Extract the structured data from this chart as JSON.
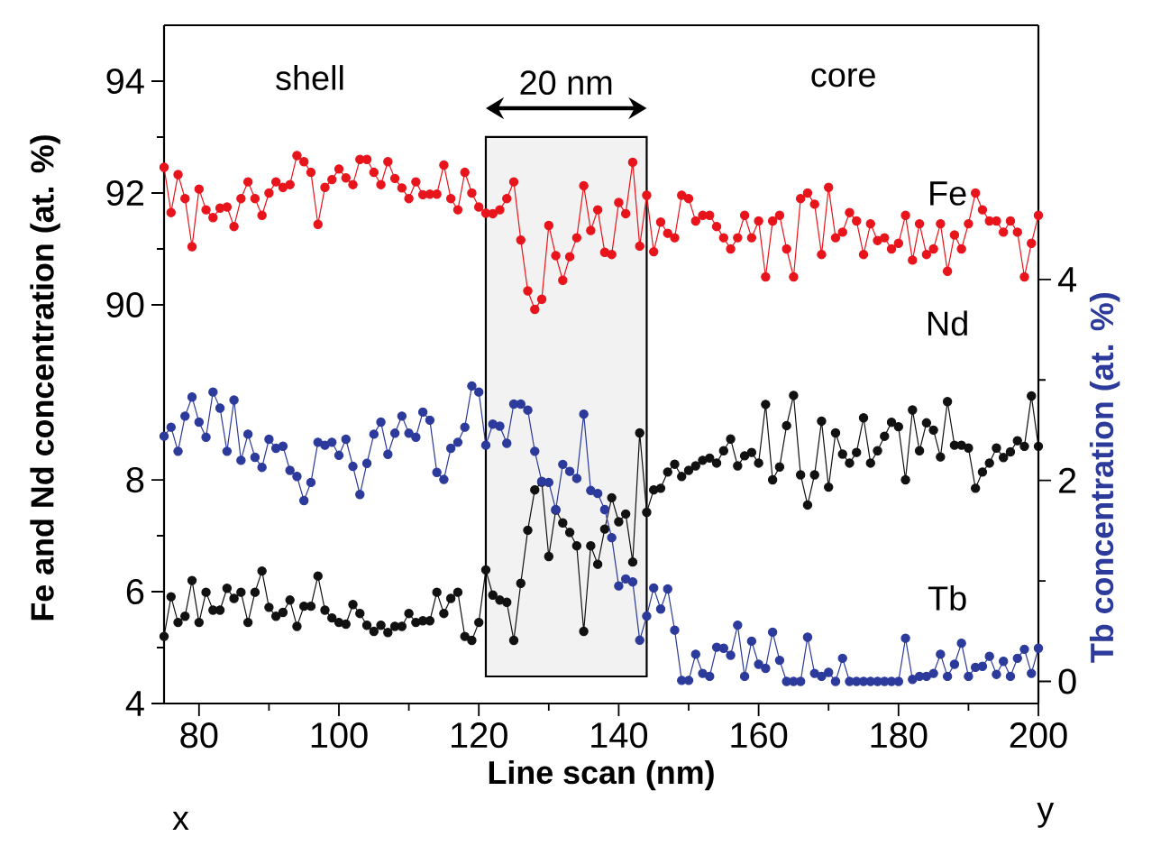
{
  "chart_data": [
    {
      "type": "line",
      "xlim": [
        75,
        200
      ],
      "ylim": [
        89,
        95
      ],
      "yticks": [
        90,
        92,
        94
      ],
      "tick_labels": "y",
      "marker": "circle",
      "line_style": "solid",
      "annotations": [
        "shell",
        "core"
      ],
      "x": [
        75,
        76,
        77,
        78,
        79,
        80,
        81,
        82,
        83,
        84,
        85,
        86,
        87,
        88,
        89,
        90,
        91,
        92,
        93,
        94,
        95,
        96,
        97,
        98,
        99,
        100,
        101,
        102,
        103,
        104,
        105,
        106,
        107,
        108,
        109,
        110,
        111,
        112,
        113,
        114,
        115,
        116,
        117,
        118,
        119,
        120,
        121,
        122,
        123,
        124,
        125,
        126,
        127,
        128,
        129,
        130,
        131,
        132,
        133,
        134,
        135,
        136,
        137,
        138,
        139,
        140,
        141,
        142,
        143,
        144,
        145,
        146,
        147,
        148,
        149,
        150,
        151,
        152,
        153,
        154,
        155,
        156,
        157,
        158,
        159,
        160,
        161,
        162,
        163,
        164,
        165,
        166,
        167,
        168,
        169,
        170,
        171,
        172,
        173,
        174,
        175,
        176,
        177,
        178,
        179,
        180,
        181,
        182,
        183,
        184,
        185,
        186,
        187,
        188,
        189,
        190,
        191,
        192,
        193,
        194,
        195,
        196,
        197,
        198,
        199,
        200
      ],
      "series": [
        {
          "name": "Fe",
          "color": "#e8141b",
          "values": [
            92.46,
            91.65,
            92.33,
            91.9,
            91.04,
            92.07,
            91.7,
            91.56,
            91.73,
            91.75,
            91.4,
            91.9,
            92.2,
            91.9,
            91.6,
            92.0,
            92.2,
            92.1,
            92.15,
            92.67,
            92.56,
            92.37,
            91.44,
            92.1,
            92.24,
            92.43,
            92.27,
            92.15,
            92.6,
            92.6,
            92.37,
            92.15,
            92.56,
            92.26,
            92.09,
            91.9,
            92.2,
            91.97,
            91.98,
            91.98,
            92.5,
            91.9,
            91.7,
            92.37,
            92.0,
            91.75,
            91.64,
            91.63,
            91.7,
            91.9,
            92.2,
            91.16,
            90.25,
            89.92,
            90.1,
            91.42,
            90.88,
            90.44,
            90.86,
            91.2,
            92.13,
            91.33,
            91.7,
            90.94,
            90.9,
            91.83,
            91.63,
            92.55,
            91.05,
            91.96,
            90.95,
            91.48,
            91.28,
            91.2,
            91.96,
            91.9,
            91.5,
            91.6,
            91.6,
            91.4,
            91.2,
            91.0,
            91.2,
            91.6,
            91.2,
            91.5,
            90.5,
            91.5,
            91.6,
            91.0,
            90.5,
            91.9,
            92.0,
            91.8,
            90.9,
            92.1,
            91.2,
            91.3,
            91.65,
            91.5,
            90.9,
            91.45,
            91.15,
            91.2,
            91.0,
            91.1,
            91.6,
            90.8,
            91.45,
            90.9,
            91.0,
            91.45,
            90.6,
            91.25,
            91.0,
            91.45,
            92.0,
            91.7,
            91.5,
            91.5,
            91.3,
            91.5,
            91.3,
            90.5,
            91.1,
            91.6
          ]
        }
      ]
    },
    {
      "type": "line",
      "xlabel": "Line scan (nm)",
      "ylabel": "Fe and Nd concentration (at. %)",
      "y2label": "Tb concentration (at. %)",
      "xlim": [
        75,
        200
      ],
      "xticks": [
        80,
        100,
        120,
        140,
        160,
        180,
        200
      ],
      "ylim": [
        4,
        10.13
      ],
      "yticks": [
        4,
        6,
        8
      ],
      "y2lim": [
        -0.22,
        6.53
      ],
      "y2ticks": [
        0,
        2,
        4
      ],
      "marker": "circle",
      "line_style": "solid",
      "annotations": [
        "x",
        "y"
      ],
      "bands": [
        {
          "axis": "x",
          "from": 121,
          "to": 144,
          "label": "20 nm",
          "color": "#f2f2f2"
        }
      ],
      "x": [
        75,
        76,
        77,
        78,
        79,
        80,
        81,
        82,
        83,
        84,
        85,
        86,
        87,
        88,
        89,
        90,
        91,
        92,
        93,
        94,
        95,
        96,
        97,
        98,
        99,
        100,
        101,
        102,
        103,
        104,
        105,
        106,
        107,
        108,
        109,
        110,
        111,
        112,
        113,
        114,
        115,
        116,
        117,
        118,
        119,
        120,
        121,
        122,
        123,
        124,
        125,
        126,
        127,
        128,
        129,
        130,
        131,
        132,
        133,
        134,
        135,
        136,
        137,
        138,
        139,
        140,
        141,
        142,
        143,
        144,
        145,
        146,
        147,
        148,
        149,
        150,
        151,
        152,
        153,
        154,
        155,
        156,
        157,
        158,
        159,
        160,
        161,
        162,
        163,
        164,
        165,
        166,
        167,
        168,
        169,
        170,
        171,
        172,
        173,
        174,
        175,
        176,
        177,
        178,
        179,
        180,
        181,
        182,
        183,
        184,
        185,
        186,
        187,
        188,
        189,
        190,
        191,
        192,
        193,
        194,
        195,
        196,
        197,
        198,
        199,
        200
      ],
      "series": [
        {
          "name": "Nd",
          "color": "#111111",
          "values": [
            5.2,
            5.91,
            5.45,
            5.56,
            6.2,
            5.45,
            5.99,
            5.67,
            5.67,
            6.06,
            5.88,
            5.99,
            5.45,
            5.99,
            6.37,
            5.72,
            5.56,
            5.63,
            5.85,
            5.38,
            5.74,
            5.74,
            6.28,
            5.67,
            5.53,
            5.45,
            5.42,
            5.77,
            5.61,
            5.4,
            5.29,
            5.4,
            5.27,
            5.38,
            5.38,
            5.61,
            5.45,
            5.48,
            5.48,
            5.99,
            5.61,
            5.88,
            5.99,
            5.2,
            5.13,
            5.45,
            6.39,
            5.94,
            5.85,
            5.81,
            5.13,
            6.15,
            7.1,
            7.82,
            7.96,
            6.63,
            7.46,
            7.23,
            7.06,
            6.82,
            5.29,
            6.82,
            6.49,
            7.12,
            7.68,
            7.25,
            7.39,
            6.53,
            8.84,
            7.42,
            7.82,
            7.85,
            8.14,
            8.28,
            8.06,
            8.17,
            8.25,
            8.35,
            8.39,
            8.3,
            8.52,
            8.73,
            8.25,
            8.43,
            8.49,
            8.3,
            9.35,
            8.0,
            8.23,
            8.97,
            9.51,
            8.09,
            7.55,
            8.09,
            9.05,
            7.87,
            8.84,
            8.46,
            8.3,
            8.49,
            9.11,
            8.3,
            8.52,
            8.78,
            9.03,
            8.95,
            8.0,
            9.25,
            8.52,
            9.02,
            8.89,
            8.41,
            9.4,
            8.62,
            8.62,
            8.57,
            7.85,
            8.14,
            8.3,
            8.57,
            8.4,
            8.5,
            8.7,
            8.6,
            9.5,
            8.6
          ]
        },
        {
          "name": "Tb",
          "color": "#2b3a9b",
          "axis": "y2",
          "values": [
            2.44,
            2.53,
            2.29,
            2.64,
            2.83,
            2.58,
            2.43,
            2.88,
            2.72,
            2.29,
            2.8,
            2.2,
            2.46,
            2.23,
            2.13,
            2.41,
            2.32,
            2.34,
            2.1,
            2.04,
            1.8,
            1.98,
            2.38,
            2.35,
            2.38,
            2.25,
            2.41,
            2.14,
            1.86,
            2.17,
            2.46,
            2.58,
            2.26,
            2.47,
            2.64,
            2.47,
            2.43,
            2.68,
            2.6,
            2.08,
            2.01,
            2.32,
            2.38,
            2.53,
            2.94,
            2.88,
            2.35,
            2.56,
            2.54,
            2.37,
            2.76,
            2.76,
            2.7,
            2.29,
            1.99,
            1.98,
            1.71,
            2.16,
            2.09,
            2.02,
            2.66,
            1.9,
            1.87,
            1.71,
            1.43,
            0.95,
            1.02,
            0.99,
            0.41,
            0.65,
            0.93,
            0.72,
            0.92,
            0.51,
            0.01,
            0.01,
            0.27,
            0.08,
            0.05,
            0.34,
            0.33,
            0.26,
            0.56,
            0.05,
            0.4,
            0.17,
            0.13,
            0.49,
            0.21,
            0,
            0,
            0,
            0.44,
            0.08,
            0.05,
            0.09,
            0,
            0.23,
            0,
            0,
            0,
            0,
            0,
            0,
            0,
            0,
            0.43,
            0.02,
            0.05,
            0.05,
            0.08,
            0.27,
            0.05,
            0.17,
            0.38,
            0.05,
            0.14,
            0.15,
            0.25,
            0.07,
            0.2,
            0.05,
            0.23,
            0.32,
            0.08,
            0.33
          ]
        }
      ]
    }
  ]
}
